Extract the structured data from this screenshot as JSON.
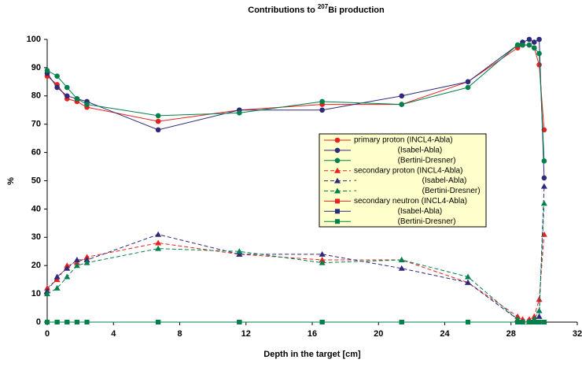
{
  "chart_data": {
    "type": "line",
    "title": [
      "Contributions to ",
      "207",
      "Bi production"
    ],
    "x_label": "Depth in the target [cm]",
    "y_label": "%",
    "x": [
      0,
      0.6,
      1.2,
      1.8,
      2.4,
      6.7,
      11.6,
      16.6,
      21.4,
      25.4,
      28.4,
      28.7,
      29.1,
      29.4,
      29.7,
      30.0
    ],
    "xlim": [
      0,
      32
    ],
    "xticks": [
      0,
      4,
      8,
      12,
      16,
      20,
      24,
      28,
      32
    ],
    "ylim": [
      0,
      100
    ],
    "yticks": [
      0,
      10,
      20,
      30,
      40,
      50,
      60,
      70,
      80,
      90,
      100
    ],
    "legend_background": "#ffffcc",
    "series": [
      {
        "name": "primary proton (INCL4-Abla)",
        "color": "#e8221e",
        "marker": "circle",
        "dashed": false,
        "values": [
          87,
          84,
          79,
          78,
          76,
          71,
          75,
          77,
          77,
          85,
          97,
          98,
          98,
          97,
          91,
          68
        ]
      },
      {
        "name": "                    (Isabel-Abla)",
        "color": "#2e2a7a",
        "marker": "circle",
        "dashed": false,
        "values": [
          88,
          83,
          80,
          79,
          78,
          68,
          75,
          75,
          80,
          85,
          98,
          99,
          100,
          99,
          100,
          51
        ]
      },
      {
        "name": "                    (Bertini-Dresner)",
        "color": "#00804a",
        "marker": "circle",
        "dashed": false,
        "values": [
          89,
          87,
          83,
          79,
          77,
          73,
          74,
          78,
          77,
          83,
          98,
          98,
          98,
          97,
          95,
          57
        ]
      },
      {
        "name": "secondary proton (INCL4-Abla)",
        "color": "#e8221e",
        "marker": "triangle",
        "dashed": true,
        "values": [
          12,
          15,
          20,
          21,
          23,
          28,
          24,
          22,
          22,
          14,
          2,
          1,
          1,
          2,
          8,
          31
        ]
      },
      {
        "name": "-                              (Isabel-Abla)",
        "color": "#2e2a7a",
        "marker": "triangle",
        "dashed": true,
        "values": [
          11,
          16,
          19,
          22,
          22,
          31,
          24,
          24,
          19,
          14,
          1,
          0,
          0,
          1,
          2,
          48
        ]
      },
      {
        "name": "-                              (Bertini-Dresner)",
        "color": "#00804a",
        "marker": "triangle",
        "dashed": true,
        "values": [
          10,
          12,
          16,
          20,
          21,
          26,
          25,
          21,
          22,
          16,
          1,
          0,
          0,
          1,
          4,
          42
        ]
      },
      {
        "name": "secondary neutron (INCL4-Abla)",
        "color": "#e8221e",
        "marker": "square",
        "dashed": false,
        "values": [
          0,
          0,
          0,
          0,
          0,
          0,
          0,
          0,
          0,
          0,
          0,
          0,
          0,
          0,
          0,
          0
        ]
      },
      {
        "name": "                    (Isabel-Abla)",
        "color": "#2e2a7a",
        "marker": "square",
        "dashed": false,
        "values": [
          0,
          0,
          0,
          0,
          0,
          0,
          0,
          0,
          0,
          0,
          0,
          0,
          0,
          0,
          0,
          0
        ]
      },
      {
        "name": "                    (Bertini-Dresner)",
        "color": "#00804a",
        "marker": "square",
        "dashed": false,
        "values": [
          0,
          0,
          0,
          0,
          0,
          0,
          0,
          0,
          0,
          0,
          0,
          0,
          0,
          0,
          0,
          0
        ]
      }
    ]
  }
}
